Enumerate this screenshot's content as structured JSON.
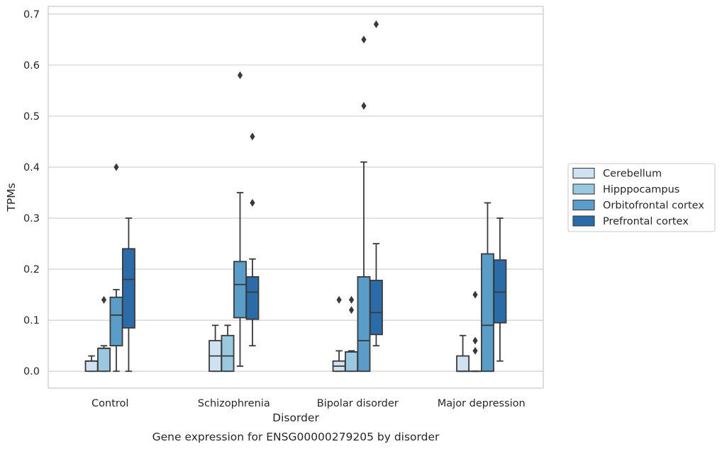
{
  "chart_data": {
    "type": "box",
    "xlabel": "Disorder",
    "ylabel": "TPMs",
    "caption": "Gene expression for ENSG00000279205 by disorder",
    "ylim": [
      -0.033,
      0.715
    ],
    "yticks": [
      "0.0",
      "0.1",
      "0.2",
      "0.3",
      "0.4",
      "0.5",
      "0.6",
      "0.7"
    ],
    "ytick_values": [
      0,
      0.1,
      0.2,
      0.3,
      0.4,
      0.5,
      0.6,
      0.7
    ],
    "grid": "horizontal",
    "legend_position": "right",
    "categories": [
      "Control",
      "Schizophrenia",
      "Bipolar disorder",
      "Major depression"
    ],
    "series": [
      {
        "name": "Cerebellum",
        "color": "#d0e1f2",
        "boxes": [
          {
            "whisker_low": 0,
            "q1": 0,
            "median": 0.02,
            "q3": 0.02,
            "whisker_high": 0.03,
            "outliers": []
          },
          {
            "whisker_low": 0,
            "q1": 0,
            "median": 0.03,
            "q3": 0.06,
            "whisker_high": 0.09,
            "outliers": []
          },
          {
            "whisker_low": 0,
            "q1": 0,
            "median": 0.01,
            "q3": 0.02,
            "whisker_high": 0.04,
            "outliers": [
              0.14
            ]
          },
          {
            "whisker_low": 0,
            "q1": 0,
            "median": 0,
            "q3": 0.03,
            "whisker_high": 0.07,
            "outliers": []
          }
        ]
      },
      {
        "name": "Hipppocampus",
        "color": "#9ac8e0",
        "boxes": [
          {
            "whisker_low": 0,
            "q1": 0,
            "median": 0.045,
            "q3": 0.045,
            "whisker_high": 0.05,
            "outliers": [
              0.14
            ]
          },
          {
            "whisker_low": 0,
            "q1": 0,
            "median": 0.03,
            "q3": 0.07,
            "whisker_high": 0.09,
            "outliers": []
          },
          {
            "whisker_low": 0,
            "q1": 0,
            "median": 0.038,
            "q3": 0.038,
            "whisker_high": 0.04,
            "outliers": [
              0.12,
              0.14
            ]
          },
          {
            "whisker_low": 0,
            "q1": 0,
            "median": 0,
            "q3": 0,
            "whisker_high": 0,
            "outliers": [
              0.04,
              0.06,
              0.15
            ]
          }
        ]
      },
      {
        "name": "Orbitofrontal cortex",
        "color": "#5b9dc9",
        "boxes": [
          {
            "whisker_low": 0,
            "q1": 0.05,
            "median": 0.11,
            "q3": 0.145,
            "whisker_high": 0.16,
            "outliers": [
              0.4
            ]
          },
          {
            "whisker_low": 0.01,
            "q1": 0.105,
            "median": 0.17,
            "q3": 0.215,
            "whisker_high": 0.35,
            "outliers": [
              0.58
            ]
          },
          {
            "whisker_low": 0,
            "q1": 0,
            "median": 0.06,
            "q3": 0.185,
            "whisker_high": 0.41,
            "outliers": [
              0.52,
              0.65
            ]
          },
          {
            "whisker_low": 0,
            "q1": 0,
            "median": 0.09,
            "q3": 0.23,
            "whisker_high": 0.33,
            "outliers": []
          }
        ]
      },
      {
        "name": "Prefrontal cortex",
        "color": "#2b6ca8",
        "boxes": [
          {
            "whisker_low": 0,
            "q1": 0.085,
            "median": 0.18,
            "q3": 0.24,
            "whisker_high": 0.3,
            "outliers": []
          },
          {
            "whisker_low": 0.05,
            "q1": 0.102,
            "median": 0.155,
            "q3": 0.185,
            "whisker_high": 0.22,
            "outliers": [
              0.33,
              0.46
            ]
          },
          {
            "whisker_low": 0.05,
            "q1": 0.072,
            "median": 0.115,
            "q3": 0.178,
            "whisker_high": 0.25,
            "outliers": [
              0.68
            ]
          },
          {
            "whisker_low": 0.02,
            "q1": 0.095,
            "median": 0.155,
            "q3": 0.218,
            "whisker_high": 0.3,
            "outliers": []
          }
        ]
      }
    ]
  }
}
